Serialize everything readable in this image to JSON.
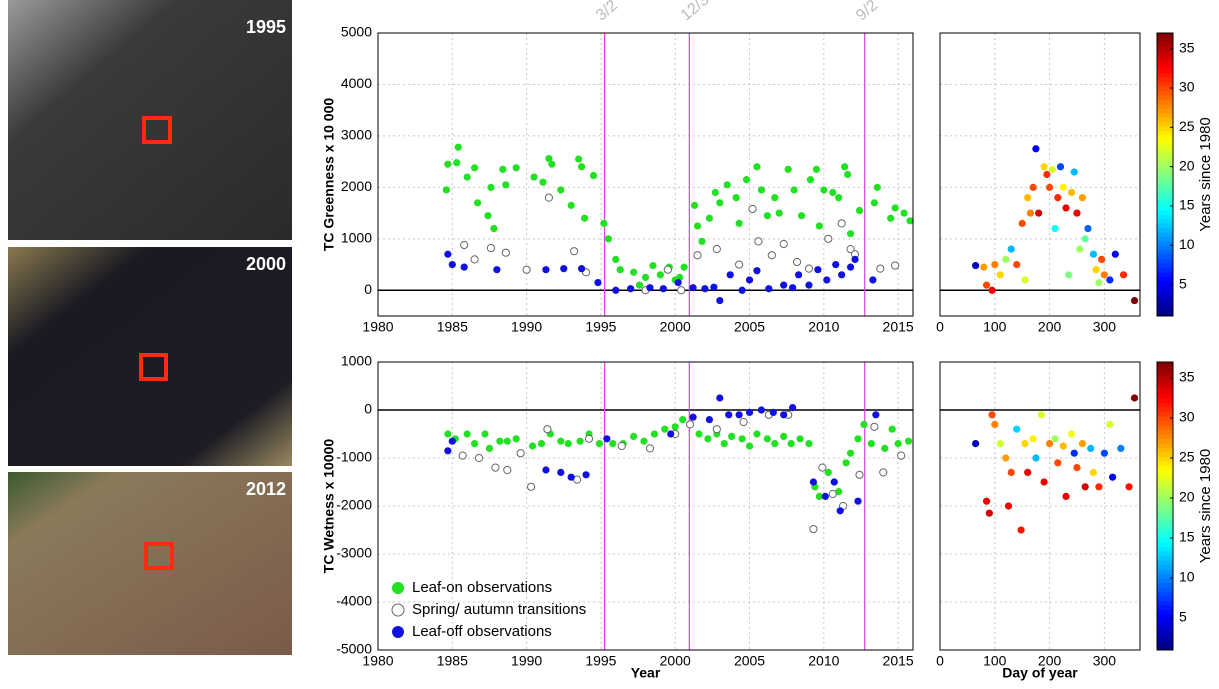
{
  "panels": [
    "1995",
    "2000",
    "2012"
  ],
  "chart_data": [
    {
      "type": "scatter",
      "ylabel": "TC Greenness x 10 000",
      "xlim": [
        1980,
        2016
      ],
      "ylim": [
        -500,
        5000
      ],
      "xticks": [
        1980,
        1985,
        1990,
        1995,
        2000,
        2005,
        2010,
        2015
      ],
      "yticks": [
        0,
        1000,
        2000,
        3000,
        4000,
        5000
      ],
      "grid": true,
      "hline": 0,
      "vlines": [
        1995.25,
        2000.95,
        2012.75
      ],
      "vline_color": "#e040e0",
      "annotations": [
        "3/2",
        "12/3",
        "9/2"
      ],
      "series": [
        {
          "color": "#22e022",
          "x": [
            1984.6,
            1984.7,
            1985.4,
            1985.3,
            1986.0,
            1986.5,
            1986.7,
            1987.4,
            1987.6,
            1987.8,
            1988.4,
            1988.6,
            1989.3,
            1990.5,
            1991.1,
            1991.5,
            1991.7,
            1992.3,
            1993.0,
            1993.5,
            1993.7,
            1993.9,
            1994.5,
            1995.2,
            1995.5,
            1996.0,
            1996.3,
            1997.2,
            1997.6,
            1998.0,
            1998.5,
            1999.0,
            1999.6,
            2000.0,
            2000.3,
            2000.6,
            2001.3,
            2001.5,
            2001.8,
            2002.3,
            2002.7,
            2003.0,
            2003.5,
            2004.1,
            2004.3,
            2004.8,
            2005.5,
            2005.8,
            2006.2,
            2006.7,
            2007.0,
            2007.6,
            2008.0,
            2008.5,
            2009.1,
            2009.5,
            2009.7,
            2010.0,
            2010.6,
            2011.0,
            2011.4,
            2011.6,
            2011.8,
            2012.4,
            2013.6,
            2013.4,
            2014.5,
            2014.8,
            2015.4,
            2015.8
          ],
          "values": [
            1950,
            2450,
            2780,
            2480,
            2200,
            2380,
            1700,
            1450,
            2000,
            1200,
            2350,
            2050,
            2380,
            2200,
            2100,
            2560,
            2450,
            1950,
            1650,
            2550,
            2400,
            1400,
            2230,
            1300,
            1000,
            600,
            400,
            350,
            100,
            250,
            480,
            300,
            450,
            200,
            250,
            450,
            1650,
            1250,
            950,
            1400,
            1900,
            1700,
            2050,
            1800,
            1300,
            2150,
            2400,
            1950,
            1450,
            1800,
            1500,
            2350,
            1950,
            1450,
            2150,
            2350,
            1250,
            1950,
            1900,
            1800,
            2400,
            2250,
            1100,
            1550,
            2000,
            1700,
            1400,
            1600,
            1500,
            1350
          ]
        },
        {
          "color": "#666666",
          "marker": "open",
          "x": [
            1985.8,
            1986.5,
            1987.6,
            1988.6,
            1990.0,
            1991.5,
            1993.2,
            1994.0,
            1998.0,
            1999.5,
            2000.4,
            2001.5,
            2002.8,
            2004.3,
            2005.2,
            2005.6,
            2006.5,
            2007.3,
            2008.2,
            2009.0,
            2010.3,
            2011.2,
            2011.8,
            2012.1,
            2013.8,
            2014.8
          ],
          "values": [
            880,
            600,
            820,
            730,
            400,
            1800,
            760,
            350,
            0,
            400,
            0,
            680,
            800,
            500,
            1580,
            950,
            680,
            900,
            550,
            420,
            1000,
            1300,
            800,
            700,
            420,
            480
          ]
        },
        {
          "color": "#1010e0",
          "x": [
            1984.7,
            1985.0,
            1985.8,
            1988.0,
            1991.3,
            1992.5,
            1993.7,
            1994.8,
            1996.0,
            1997.0,
            1998.3,
            1999.2,
            2000.2,
            2001.2,
            2002.0,
            2002.6,
            2003.0,
            2003.7,
            2004.5,
            2005.0,
            2005.5,
            2006.3,
            2007.3,
            2007.9,
            2008.3,
            2009.0,
            2009.6,
            2010.2,
            2010.8,
            2011.2,
            2011.8,
            2012.1,
            2013.3
          ],
          "values": [
            700,
            500,
            450,
            400,
            400,
            420,
            420,
            150,
            0,
            30,
            50,
            30,
            150,
            50,
            30,
            60,
            -200,
            300,
            0,
            200,
            380,
            30,
            100,
            50,
            300,
            100,
            400,
            200,
            500,
            300,
            450,
            600,
            200
          ]
        }
      ]
    },
    {
      "type": "scatter",
      "xlabel": "Year",
      "ylabel": "TC Wetness x 10000",
      "xlim": [
        1980,
        2016
      ],
      "ylim": [
        -5000,
        1000
      ],
      "xticks": [
        1980,
        1985,
        1990,
        1995,
        2000,
        2005,
        2010,
        2015
      ],
      "yticks": [
        -5000,
        -4000,
        -3000,
        -2000,
        -1000,
        0,
        1000
      ],
      "grid": true,
      "hline": 0,
      "vlines": [
        1995.25,
        2000.95,
        2012.75
      ],
      "vline_color": "#e040e0",
      "legend": "lower left",
      "series": [
        {
          "name": "Leaf-on observations",
          "color": "#22e022",
          "x": [
            1984.7,
            1985.2,
            1986.0,
            1986.5,
            1987.2,
            1987.5,
            1988.2,
            1988.7,
            1989.3,
            1990.4,
            1991.0,
            1991.6,
            1992.3,
            1992.8,
            1993.6,
            1994.2,
            1994.9,
            1995.8,
            1996.5,
            1997.2,
            1997.9,
            1998.6,
            1999.3,
            2000.0,
            2000.5,
            2001.0,
            2001.6,
            2002.2,
            2002.8,
            2003.3,
            2003.8,
            2004.5,
            2005.0,
            2005.5,
            2006.2,
            2006.7,
            2007.3,
            2007.8,
            2008.4,
            2009.0,
            2009.4,
            2009.7,
            2010.3,
            2010.7,
            2011.0,
            2011.5,
            2011.8,
            2012.3,
            2012.7,
            2013.2,
            2014.1,
            2014.6,
            2015.0,
            2015.7
          ],
          "values": [
            -500,
            -600,
            -500,
            -700,
            -500,
            -800,
            -650,
            -650,
            -600,
            -750,
            -700,
            -500,
            -650,
            -700,
            -650,
            -500,
            -700,
            -700,
            -700,
            -550,
            -650,
            -500,
            -400,
            -350,
            -200,
            -300,
            -500,
            -600,
            -500,
            -700,
            -550,
            -600,
            -750,
            -500,
            -600,
            -700,
            -550,
            -700,
            -600,
            -700,
            -1600,
            -1800,
            -1300,
            -1500,
            -1700,
            -1100,
            -900,
            -600,
            -300,
            -700,
            -800,
            -400,
            -700,
            -650
          ]
        },
        {
          "name": "Spring/ autumn transitions",
          "color": "#666666",
          "marker": "open",
          "x": [
            1985.7,
            1986.8,
            1987.9,
            1988.7,
            1989.6,
            1990.3,
            1991.4,
            1993.4,
            1994.2,
            1996.4,
            1998.3,
            2000.0,
            2001.0,
            2002.8,
            2004.6,
            2006.3,
            2007.6,
            2009.3,
            2009.9,
            2010.6,
            2011.3,
            2012.4,
            2013.4,
            2014.0,
            2015.2
          ],
          "values": [
            -950,
            -1000,
            -1200,
            -1250,
            -900,
            -1600,
            -400,
            -1450,
            -600,
            -750,
            -800,
            -500,
            -300,
            -400,
            -250,
            -100,
            -100,
            -2480,
            -1200,
            -1750,
            -2000,
            -1350,
            -350,
            -1300,
            -950
          ]
        },
        {
          "name": "Leaf-off observations",
          "color": "#1010e0",
          "x": [
            1984.7,
            1985.0,
            1991.3,
            1992.3,
            1993.0,
            1994.0,
            1995.4,
            1999.7,
            2001.2,
            2002.3,
            2003.0,
            2003.6,
            2004.3,
            2005.0,
            2005.8,
            2006.6,
            2007.3,
            2007.9,
            2009.3,
            2010.1,
            2010.7,
            2011.1,
            2012.3,
            2013.5
          ],
          "values": [
            -850,
            -650,
            -1250,
            -1300,
            -1400,
            -1350,
            -600,
            -500,
            -150,
            -200,
            250,
            -100,
            -100,
            -50,
            0,
            -50,
            -100,
            50,
            -1500,
            -1800,
            -1500,
            -2100,
            -1900,
            -100
          ]
        }
      ]
    },
    {
      "type": "scatter",
      "xlim": [
        0,
        365
      ],
      "ylim": [
        -500,
        5000
      ],
      "xticks": [
        0,
        100,
        200,
        300
      ],
      "yticks": [
        0,
        1000,
        2000,
        3000,
        4000,
        5000
      ],
      "ytick_labels": false,
      "grid": true,
      "hline": 0,
      "colormap": "jet",
      "clim": [
        1,
        37
      ],
      "cticks": [
        5,
        10,
        15,
        20,
        25,
        30,
        35
      ],
      "colorbar_label": "Years since 1980",
      "series": [
        {
          "x": [
            65,
            80,
            85,
            95,
            100,
            110,
            120,
            130,
            140,
            150,
            155,
            160,
            165,
            170,
            175,
            180,
            190,
            195,
            200,
            205,
            210,
            215,
            220,
            225,
            230,
            235,
            240,
            245,
            250,
            255,
            260,
            265,
            270,
            280,
            285,
            290,
            295,
            300,
            310,
            320,
            335,
            355
          ],
          "values": [
            480,
            450,
            100,
            0,
            500,
            300,
            600,
            800,
            500,
            1300,
            200,
            1800,
            1500,
            2000,
            2750,
            1500,
            2400,
            2250,
            2000,
            2350,
            1200,
            1800,
            2400,
            2000,
            1600,
            300,
            1900,
            2300,
            1500,
            800,
            1800,
            1000,
            1200,
            700,
            400,
            150,
            600,
            300,
            200,
            700,
            300,
            -200
          ],
          "c": [
            3,
            27,
            30,
            33,
            28,
            25,
            20,
            12,
            30,
            30,
            22,
            26,
            28,
            30,
            5,
            34,
            25,
            31,
            30,
            22,
            15,
            31,
            8,
            24,
            33,
            19,
            26,
            12,
            33,
            20,
            27,
            18,
            9,
            12,
            25,
            20,
            30,
            28,
            7,
            5,
            31,
            37
          ]
        }
      ]
    },
    {
      "type": "scatter",
      "xlabel": "Day of year",
      "xlim": [
        0,
        365
      ],
      "ylim": [
        -5000,
        1000
      ],
      "xticks": [
        0,
        100,
        200,
        300
      ],
      "yticks": [
        -5000,
        -4000,
        -3000,
        -2000,
        -1000,
        0,
        1000
      ],
      "ytick_labels": false,
      "grid": true,
      "hline": 0,
      "colormap": "jet",
      "clim": [
        1,
        37
      ],
      "cticks": [
        5,
        10,
        15,
        20,
        25,
        30,
        35
      ],
      "colorbar_label": "Years since 1980",
      "series": [
        {
          "x": [
            65,
            85,
            90,
            95,
            100,
            110,
            120,
            125,
            130,
            140,
            148,
            155,
            160,
            170,
            175,
            185,
            190,
            200,
            210,
            215,
            225,
            230,
            240,
            245,
            250,
            260,
            265,
            275,
            280,
            290,
            300,
            310,
            315,
            330,
            345,
            355
          ],
          "values": [
            -700,
            -1900,
            -2150,
            -100,
            -300,
            -700,
            -1000,
            -2000,
            -1300,
            -400,
            -2500,
            -700,
            -1300,
            -600,
            -1000,
            -100,
            -1500,
            -700,
            -600,
            -1100,
            -750,
            -1800,
            -500,
            -900,
            -1200,
            -700,
            -1600,
            -800,
            -1300,
            -1600,
            -900,
            -300,
            -1400,
            -800,
            -1600,
            250
          ],
          "c": [
            3,
            33,
            34,
            30,
            28,
            22,
            27,
            33,
            30,
            13,
            32,
            25,
            33,
            24,
            12,
            22,
            33,
            28,
            20,
            30,
            26,
            33,
            23,
            7,
            30,
            27,
            34,
            12,
            25,
            31,
            8,
            22,
            5,
            10,
            32,
            37
          ]
        }
      ]
    }
  ]
}
